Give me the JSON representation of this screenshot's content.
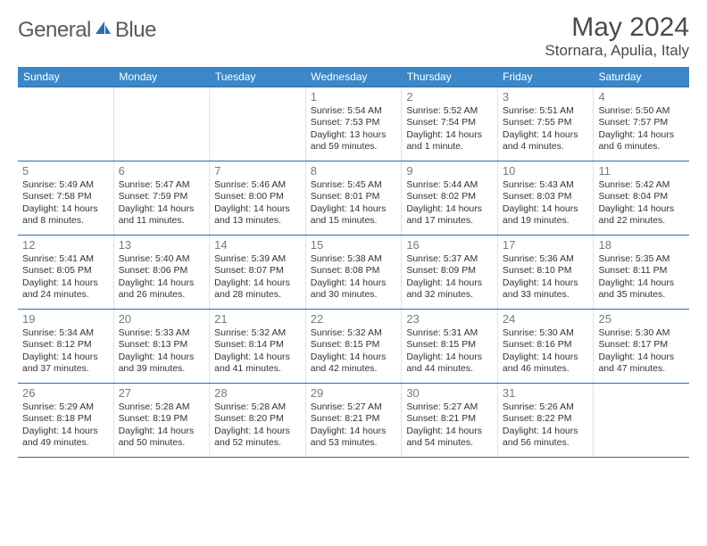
{
  "logo": {
    "text_left": "General",
    "text_right": "Blue"
  },
  "title": "May 2024",
  "location": "Stornara, Apulia, Italy",
  "weekdays": [
    "Sunday",
    "Monday",
    "Tuesday",
    "Wednesday",
    "Thursday",
    "Friday",
    "Saturday"
  ],
  "colors": {
    "header_bg": "#3b87c8",
    "header_text": "#ffffff",
    "rule": "#2a6db0",
    "daynum": "#7a7a7a",
    "body_text": "#333333",
    "logo_gray": "#5a5a5a",
    "logo_blue": "#2a6db0"
  },
  "weeks": [
    [
      {
        "n": "",
        "sunrise": "",
        "sunset": "",
        "daylight": ""
      },
      {
        "n": "",
        "sunrise": "",
        "sunset": "",
        "daylight": ""
      },
      {
        "n": "",
        "sunrise": "",
        "sunset": "",
        "daylight": ""
      },
      {
        "n": "1",
        "sunrise": "Sunrise: 5:54 AM",
        "sunset": "Sunset: 7:53 PM",
        "daylight": "Daylight: 13 hours and 59 minutes."
      },
      {
        "n": "2",
        "sunrise": "Sunrise: 5:52 AM",
        "sunset": "Sunset: 7:54 PM",
        "daylight": "Daylight: 14 hours and 1 minute."
      },
      {
        "n": "3",
        "sunrise": "Sunrise: 5:51 AM",
        "sunset": "Sunset: 7:55 PM",
        "daylight": "Daylight: 14 hours and 4 minutes."
      },
      {
        "n": "4",
        "sunrise": "Sunrise: 5:50 AM",
        "sunset": "Sunset: 7:57 PM",
        "daylight": "Daylight: 14 hours and 6 minutes."
      }
    ],
    [
      {
        "n": "5",
        "sunrise": "Sunrise: 5:49 AM",
        "sunset": "Sunset: 7:58 PM",
        "daylight": "Daylight: 14 hours and 8 minutes."
      },
      {
        "n": "6",
        "sunrise": "Sunrise: 5:47 AM",
        "sunset": "Sunset: 7:59 PM",
        "daylight": "Daylight: 14 hours and 11 minutes."
      },
      {
        "n": "7",
        "sunrise": "Sunrise: 5:46 AM",
        "sunset": "Sunset: 8:00 PM",
        "daylight": "Daylight: 14 hours and 13 minutes."
      },
      {
        "n": "8",
        "sunrise": "Sunrise: 5:45 AM",
        "sunset": "Sunset: 8:01 PM",
        "daylight": "Daylight: 14 hours and 15 minutes."
      },
      {
        "n": "9",
        "sunrise": "Sunrise: 5:44 AM",
        "sunset": "Sunset: 8:02 PM",
        "daylight": "Daylight: 14 hours and 17 minutes."
      },
      {
        "n": "10",
        "sunrise": "Sunrise: 5:43 AM",
        "sunset": "Sunset: 8:03 PM",
        "daylight": "Daylight: 14 hours and 19 minutes."
      },
      {
        "n": "11",
        "sunrise": "Sunrise: 5:42 AM",
        "sunset": "Sunset: 8:04 PM",
        "daylight": "Daylight: 14 hours and 22 minutes."
      }
    ],
    [
      {
        "n": "12",
        "sunrise": "Sunrise: 5:41 AM",
        "sunset": "Sunset: 8:05 PM",
        "daylight": "Daylight: 14 hours and 24 minutes."
      },
      {
        "n": "13",
        "sunrise": "Sunrise: 5:40 AM",
        "sunset": "Sunset: 8:06 PM",
        "daylight": "Daylight: 14 hours and 26 minutes."
      },
      {
        "n": "14",
        "sunrise": "Sunrise: 5:39 AM",
        "sunset": "Sunset: 8:07 PM",
        "daylight": "Daylight: 14 hours and 28 minutes."
      },
      {
        "n": "15",
        "sunrise": "Sunrise: 5:38 AM",
        "sunset": "Sunset: 8:08 PM",
        "daylight": "Daylight: 14 hours and 30 minutes."
      },
      {
        "n": "16",
        "sunrise": "Sunrise: 5:37 AM",
        "sunset": "Sunset: 8:09 PM",
        "daylight": "Daylight: 14 hours and 32 minutes."
      },
      {
        "n": "17",
        "sunrise": "Sunrise: 5:36 AM",
        "sunset": "Sunset: 8:10 PM",
        "daylight": "Daylight: 14 hours and 33 minutes."
      },
      {
        "n": "18",
        "sunrise": "Sunrise: 5:35 AM",
        "sunset": "Sunset: 8:11 PM",
        "daylight": "Daylight: 14 hours and 35 minutes."
      }
    ],
    [
      {
        "n": "19",
        "sunrise": "Sunrise: 5:34 AM",
        "sunset": "Sunset: 8:12 PM",
        "daylight": "Daylight: 14 hours and 37 minutes."
      },
      {
        "n": "20",
        "sunrise": "Sunrise: 5:33 AM",
        "sunset": "Sunset: 8:13 PM",
        "daylight": "Daylight: 14 hours and 39 minutes."
      },
      {
        "n": "21",
        "sunrise": "Sunrise: 5:32 AM",
        "sunset": "Sunset: 8:14 PM",
        "daylight": "Daylight: 14 hours and 41 minutes."
      },
      {
        "n": "22",
        "sunrise": "Sunrise: 5:32 AM",
        "sunset": "Sunset: 8:15 PM",
        "daylight": "Daylight: 14 hours and 42 minutes."
      },
      {
        "n": "23",
        "sunrise": "Sunrise: 5:31 AM",
        "sunset": "Sunset: 8:15 PM",
        "daylight": "Daylight: 14 hours and 44 minutes."
      },
      {
        "n": "24",
        "sunrise": "Sunrise: 5:30 AM",
        "sunset": "Sunset: 8:16 PM",
        "daylight": "Daylight: 14 hours and 46 minutes."
      },
      {
        "n": "25",
        "sunrise": "Sunrise: 5:30 AM",
        "sunset": "Sunset: 8:17 PM",
        "daylight": "Daylight: 14 hours and 47 minutes."
      }
    ],
    [
      {
        "n": "26",
        "sunrise": "Sunrise: 5:29 AM",
        "sunset": "Sunset: 8:18 PM",
        "daylight": "Daylight: 14 hours and 49 minutes."
      },
      {
        "n": "27",
        "sunrise": "Sunrise: 5:28 AM",
        "sunset": "Sunset: 8:19 PM",
        "daylight": "Daylight: 14 hours and 50 minutes."
      },
      {
        "n": "28",
        "sunrise": "Sunrise: 5:28 AM",
        "sunset": "Sunset: 8:20 PM",
        "daylight": "Daylight: 14 hours and 52 minutes."
      },
      {
        "n": "29",
        "sunrise": "Sunrise: 5:27 AM",
        "sunset": "Sunset: 8:21 PM",
        "daylight": "Daylight: 14 hours and 53 minutes."
      },
      {
        "n": "30",
        "sunrise": "Sunrise: 5:27 AM",
        "sunset": "Sunset: 8:21 PM",
        "daylight": "Daylight: 14 hours and 54 minutes."
      },
      {
        "n": "31",
        "sunrise": "Sunrise: 5:26 AM",
        "sunset": "Sunset: 8:22 PM",
        "daylight": "Daylight: 14 hours and 56 minutes."
      },
      {
        "n": "",
        "sunrise": "",
        "sunset": "",
        "daylight": ""
      }
    ]
  ]
}
